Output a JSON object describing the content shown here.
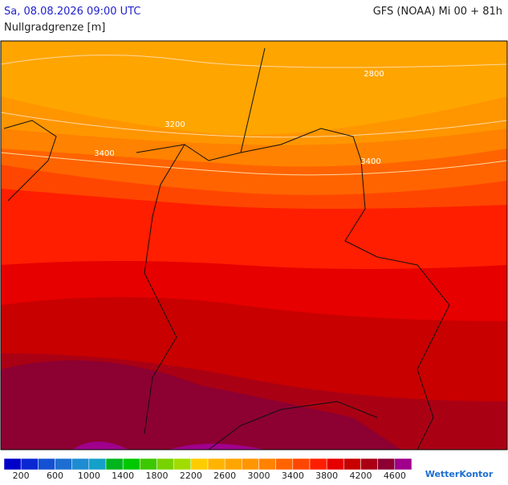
{
  "header": {
    "left": "Sa, 08.08.2026 09:00 UTC",
    "right": "GFS (NOAA) Mi 00 + 81h",
    "subtitle": "Nullgradgrenze [m]"
  },
  "map": {
    "contour_labels": [
      "2800",
      "3200",
      "3400",
      "3400"
    ]
  },
  "legend": {
    "colors": [
      "#0000c8",
      "#0a28d2",
      "#1450d2",
      "#1e6ed2",
      "#1e8cd2",
      "#14a0c8",
      "#00b41e",
      "#00c800",
      "#3cc800",
      "#78d200",
      "#a0dc00",
      "#ffcc00",
      "#ffb400",
      "#ffa500",
      "#ff9600",
      "#ff8200",
      "#ff6400",
      "#ff4600",
      "#ff1e00",
      "#e60000",
      "#c80000",
      "#aa0014",
      "#8c0032",
      "#a0008c"
    ],
    "ticks": [
      200,
      600,
      1000,
      1400,
      1800,
      2200,
      2600,
      3000,
      3400,
      3800,
      4200,
      4600
    ]
  },
  "brand": "WetterKontor"
}
